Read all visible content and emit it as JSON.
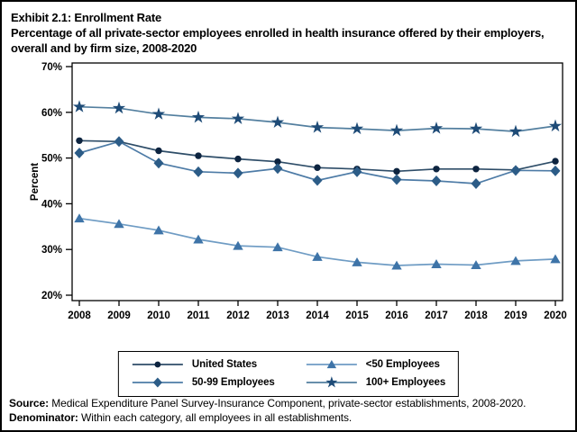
{
  "title": {
    "line1": "Exhibit 2.1: Enrollment Rate",
    "subtitle": "Percentage of all private-sector employees enrolled in health insurance offered by their employers, overall and by firm size, 2008-2020"
  },
  "chart_data": {
    "type": "line",
    "x": [
      2008,
      2009,
      2010,
      2011,
      2012,
      2013,
      2014,
      2015,
      2016,
      2017,
      2018,
      2019,
      2020
    ],
    "series": [
      {
        "name": "United States",
        "marker": "circle",
        "marker_color": "#0d2440",
        "line_color": "#2e4d68",
        "values": [
          53.8,
          53.6,
          51.6,
          50.5,
          49.8,
          49.2,
          47.9,
          47.6,
          47.1,
          47.6,
          47.6,
          47.4,
          49.3
        ]
      },
      {
        "name": "50-99 Employees",
        "marker": "diamond",
        "marker_color": "#2c5c87",
        "line_color": "#4d7ba6",
        "values": [
          51.1,
          53.6,
          48.9,
          47.0,
          46.7,
          47.7,
          45.1,
          47.0,
          45.3,
          45.0,
          44.4,
          47.3,
          47.2
        ]
      },
      {
        "name": "<50 Employees",
        "marker": "triangle",
        "marker_color": "#3e74a8",
        "line_color": "#6f9cc4",
        "values": [
          36.8,
          35.6,
          34.2,
          32.2,
          30.8,
          30.5,
          28.4,
          27.2,
          26.5,
          26.8,
          26.6,
          27.5,
          27.9
        ]
      },
      {
        "name": "100+ Employees",
        "marker": "star",
        "marker_color": "#1e4b77",
        "line_color": "#537f9f",
        "values": [
          61.2,
          60.9,
          59.6,
          58.9,
          58.6,
          57.8,
          56.7,
          56.4,
          56.0,
          56.5,
          56.4,
          55.8,
          57.0
        ]
      }
    ],
    "legend_order": [
      0,
      2,
      1,
      3
    ],
    "ylabel": "Percent",
    "ylim": [
      20,
      70
    ],
    "ytick_step": 10,
    "ytick_suffix": "%",
    "grid": false,
    "legend_position": "bottom-box",
    "axis_color": "#000000"
  },
  "footer": {
    "source_label": "Source:",
    "source_text": " Medical Expenditure Panel Survey-Insurance Component, private-sector establishments, 2008-2020.",
    "denominator_label": "Denominator:",
    "denominator_text": " Within each category, all employees in all establishments."
  }
}
